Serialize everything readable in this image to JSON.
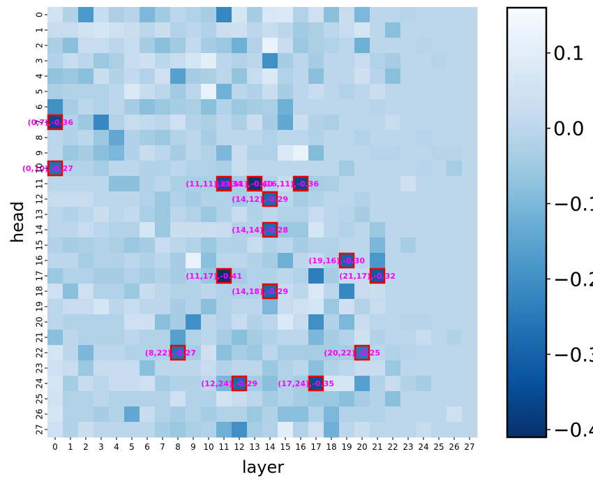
{
  "chart_data": {
    "type": "heatmap",
    "title": "",
    "xlabel": "layer",
    "ylabel": "head",
    "x_ticks": [
      "0",
      "1",
      "2",
      "3",
      "4",
      "5",
      "6",
      "7",
      "8",
      "9",
      "10",
      "11",
      "12",
      "13",
      "14",
      "15",
      "16",
      "17",
      "18",
      "19",
      "20",
      "21",
      "22",
      "23",
      "24",
      "25",
      "26",
      "27"
    ],
    "y_ticks": [
      "0",
      "1",
      "2",
      "3",
      "4",
      "5",
      "6",
      "7",
      "8",
      "9",
      "10",
      "11",
      "12",
      "13",
      "14",
      "15",
      "16",
      "17",
      "18",
      "19",
      "20",
      "21",
      "22",
      "23",
      "24",
      "25",
      "26",
      "27"
    ],
    "color_range": [
      -0.41,
      0.16
    ],
    "colormap": "Blues_r",
    "colorbar_ticks": [
      {
        "value": 0.1,
        "label": "0.1"
      },
      {
        "value": 0.0,
        "label": "0.0"
      },
      {
        "value": -0.1,
        "label": "−0.1"
      },
      {
        "value": -0.2,
        "label": "−0.2"
      },
      {
        "value": -0.3,
        "label": "−0.3"
      },
      {
        "value": -0.4,
        "label": "−0.4"
      }
    ],
    "grid": false,
    "values": [
      [
        0.05,
        -0.02,
        -0.18,
        0.02,
        -0.03,
        -0.01,
        -0.1,
        -0.05,
        0.0,
        -0.02,
        -0.04,
        -0.22,
        0.06,
        -0.04,
        0.07,
        0.08,
        -0.02,
        0.04,
        -0.08,
        0.02,
        -0.1,
        0.0,
        0.0,
        -0.01,
        0.0,
        0.0,
        0.0,
        0.0
      ],
      [
        0.02,
        0.02,
        0.05,
        0.06,
        0.04,
        0.03,
        0.0,
        0.03,
        -0.02,
        0.0,
        -0.02,
        0.03,
        0.04,
        0.0,
        0.02,
        0.0,
        -0.05,
        -0.03,
        0.0,
        0.02,
        0.06,
        0.0,
        -0.08,
        0.0,
        0.0,
        0.0,
        0.0,
        0.0
      ],
      [
        -0.03,
        -0.08,
        0.02,
        0.02,
        0.0,
        0.02,
        -0.04,
        -0.08,
        -0.05,
        0.01,
        -0.04,
        -0.06,
        -0.12,
        -0.02,
        0.12,
        0.02,
        -0.06,
        -0.03,
        -0.02,
        0.0,
        -0.12,
        0.0,
        0.0,
        0.0,
        -0.01,
        0.0,
        0.0,
        0.0
      ],
      [
        -0.02,
        0.02,
        0.0,
        -0.06,
        -0.03,
        0.02,
        0.04,
        0.0,
        0.02,
        0.06,
        0.1,
        0.0,
        -0.02,
        0.0,
        -0.2,
        -0.04,
        0.0,
        -0.04,
        0.0,
        0.0,
        0.02,
        -0.02,
        -0.04,
        0.0,
        0.0,
        -0.01,
        0.0,
        0.0
      ],
      [
        -0.07,
        -0.06,
        -0.08,
        0.03,
        -0.02,
        0.01,
        -0.02,
        0.04,
        -0.16,
        -0.04,
        -0.03,
        0.0,
        -0.07,
        0.02,
        0.08,
        -0.02,
        0.0,
        -0.08,
        0.0,
        0.0,
        0.04,
        -0.01,
        -0.08,
        0.0,
        0.0,
        0.0,
        0.0,
        0.0
      ],
      [
        -0.03,
        -0.02,
        -0.02,
        -0.02,
        0.0,
        0.08,
        0.02,
        0.0,
        -0.05,
        0.0,
        0.12,
        -0.12,
        0.0,
        -0.02,
        0.03,
        -0.04,
        0.0,
        0.02,
        0.0,
        -0.02,
        0.0,
        0.03,
        0.0,
        0.0,
        0.0,
        0.0,
        0.0,
        0.0
      ],
      [
        -0.2,
        -0.04,
        0.0,
        -0.02,
        0.0,
        -0.04,
        -0.08,
        -0.06,
        -0.04,
        -0.03,
        -0.08,
        -0.02,
        -0.06,
        -0.04,
        -0.03,
        -0.12,
        0.0,
        0.0,
        0.0,
        0.0,
        0.0,
        -0.01,
        0.0,
        0.0,
        0.0,
        0.0,
        0.0,
        0.0
      ],
      [
        -0.36,
        -0.02,
        -0.06,
        -0.22,
        -0.02,
        0.02,
        0.01,
        0.0,
        0.04,
        -0.02,
        -0.03,
        0.0,
        -0.03,
        0.03,
        -0.04,
        -0.14,
        0.03,
        -0.02,
        -0.03,
        0.0,
        0.0,
        0.0,
        0.02,
        0.0,
        0.0,
        0.0,
        0.0,
        0.0
      ],
      [
        0.0,
        -0.02,
        0.0,
        -0.06,
        -0.14,
        -0.02,
        -0.04,
        -0.06,
        -0.02,
        0.0,
        -0.04,
        0.0,
        0.0,
        0.0,
        -0.02,
        0.0,
        0.0,
        -0.02,
        0.0,
        0.0,
        -0.02,
        0.0,
        0.0,
        0.0,
        -0.01,
        0.0,
        0.0,
        0.0
      ],
      [
        0.0,
        -0.06,
        -0.04,
        -0.08,
        -0.1,
        -0.02,
        0.02,
        0.0,
        -0.04,
        0.0,
        -0.02,
        -0.1,
        0.02,
        -0.02,
        -0.02,
        0.08,
        0.12,
        -0.09,
        0.0,
        0.0,
        0.0,
        -0.01,
        -0.01,
        0.0,
        0.0,
        -0.01,
        -0.01,
        0.0
      ],
      [
        -0.27,
        -0.02,
        -0.02,
        -0.04,
        0.0,
        0.0,
        -0.02,
        -0.02,
        0.0,
        -0.02,
        -0.02,
        -0.03,
        0.02,
        0.0,
        0.0,
        0.0,
        0.0,
        0.0,
        0.0,
        -0.05,
        0.0,
        0.0,
        0.0,
        0.0,
        -0.01,
        0.0,
        -0.04,
        0.0
      ],
      [
        0.0,
        0.0,
        0.0,
        0.0,
        -0.08,
        -0.08,
        -0.02,
        0.0,
        -0.03,
        -0.03,
        -0.03,
        -0.34,
        -0.04,
        -0.4,
        -0.02,
        0.02,
        -0.36,
        -0.04,
        -0.03,
        0.0,
        0.0,
        0.0,
        0.0,
        0.04,
        0.0,
        0.0,
        0.0,
        0.0
      ],
      [
        0.02,
        0.02,
        0.02,
        0.0,
        0.0,
        0.0,
        -0.02,
        -0.06,
        -0.02,
        -0.04,
        -0.02,
        -0.02,
        -0.04,
        -0.02,
        -0.29,
        0.0,
        -0.04,
        -0.02,
        0.0,
        0.0,
        -0.02,
        0.0,
        0.0,
        0.0,
        0.0,
        0.0,
        0.0,
        0.0
      ],
      [
        0.0,
        -0.02,
        0.0,
        0.03,
        0.0,
        0.01,
        -0.03,
        -0.06,
        0.0,
        -0.02,
        -0.06,
        -0.02,
        0.02,
        -0.02,
        0.0,
        -0.02,
        -0.02,
        0.02,
        0.0,
        -0.01,
        -0.04,
        0.0,
        0.0,
        0.0,
        0.0,
        0.0,
        0.0,
        0.0
      ],
      [
        0.0,
        0.0,
        0.02,
        0.0,
        -0.02,
        -0.02,
        0.06,
        -0.06,
        0.03,
        0.03,
        0.03,
        0.02,
        -0.02,
        -0.02,
        -0.28,
        -0.06,
        -0.06,
        0.06,
        0.0,
        -0.02,
        0.0,
        -0.06,
        0.0,
        0.0,
        0.0,
        0.0,
        0.0,
        0.0
      ],
      [
        -0.02,
        -0.04,
        -0.03,
        -0.02,
        -0.03,
        -0.06,
        -0.04,
        0.02,
        0.0,
        -0.02,
        -0.06,
        -0.02,
        -0.02,
        0.02,
        -0.02,
        0.0,
        -0.04,
        -0.02,
        -0.02,
        0.0,
        0.0,
        -0.1,
        0.0,
        -0.04,
        0.0,
        0.0,
        0.0,
        0.0
      ],
      [
        0.0,
        0.0,
        -0.04,
        -0.02,
        -0.02,
        0.0,
        -0.02,
        0.0,
        -0.04,
        0.12,
        -0.08,
        0.0,
        0.0,
        -0.02,
        -0.04,
        -0.12,
        0.0,
        0.02,
        -0.02,
        -0.3,
        0.0,
        -0.18,
        0.0,
        0.0,
        0.0,
        0.0,
        0.0,
        0.0
      ],
      [
        -0.06,
        -0.02,
        -0.02,
        -0.04,
        -0.04,
        -0.02,
        -0.04,
        -0.02,
        -0.04,
        -0.02,
        -0.06,
        -0.41,
        -0.04,
        -0.02,
        -0.02,
        0.0,
        -0.02,
        -0.24,
        -0.04,
        0.02,
        0.02,
        -0.32,
        0.0,
        0.0,
        0.0,
        0.0,
        0.0,
        0.0
      ],
      [
        0.04,
        -0.08,
        0.04,
        -0.02,
        -0.02,
        -0.06,
        0.02,
        0.0,
        -0.02,
        -0.02,
        0.0,
        -0.02,
        -0.02,
        -0.02,
        -0.29,
        0.02,
        0.0,
        0.08,
        0.0,
        -0.22,
        0.02,
        0.03,
        0.0,
        0.0,
        0.0,
        0.0,
        0.0,
        0.0
      ],
      [
        0.0,
        0.02,
        0.02,
        0.06,
        0.0,
        0.02,
        0.0,
        0.0,
        -0.04,
        -0.02,
        -0.08,
        -0.02,
        0.0,
        0.0,
        -0.1,
        0.02,
        0.04,
        0.06,
        -0.06,
        0.04,
        -0.02,
        0.02,
        0.0,
        0.0,
        0.0,
        0.0,
        0.0,
        0.0
      ],
      [
        0.0,
        -0.02,
        -0.02,
        -0.02,
        -0.02,
        0.04,
        0.04,
        -0.08,
        -0.04,
        -0.2,
        0.0,
        -0.02,
        0.02,
        -0.02,
        0.0,
        0.08,
        0.02,
        -0.2,
        -0.02,
        -0.1,
        0.02,
        0.0,
        0.0,
        -0.01,
        -0.01,
        0.0,
        0.0,
        0.0
      ],
      [
        -0.08,
        0.0,
        -0.02,
        -0.02,
        -0.02,
        0.0,
        -0.02,
        -0.02,
        -0.16,
        -0.02,
        0.0,
        -0.04,
        -0.08,
        -0.04,
        -0.02,
        0.0,
        0.0,
        -0.1,
        -0.04,
        -0.02,
        0.04,
        -0.02,
        0.0,
        0.0,
        0.02,
        0.0,
        -0.02,
        0.0
      ],
      [
        0.06,
        0.0,
        -0.1,
        0.0,
        0.0,
        -0.02,
        -0.02,
        -0.02,
        -0.27,
        -0.04,
        0.04,
        -0.08,
        -0.04,
        -0.06,
        0.0,
        -0.04,
        -0.04,
        -0.04,
        -0.04,
        -0.04,
        -0.25,
        0.0,
        -0.02,
        -0.01,
        0.0,
        0.0,
        0.0,
        0.0
      ],
      [
        0.04,
        0.02,
        -0.06,
        0.02,
        0.02,
        0.02,
        -0.08,
        0.0,
        0.0,
        0.0,
        0.02,
        -0.02,
        0.0,
        0.0,
        -0.06,
        -0.02,
        0.0,
        -0.08,
        -0.02,
        0.0,
        0.02,
        0.02,
        -0.06,
        0.0,
        0.0,
        0.0,
        0.0,
        0.0
      ],
      [
        0.06,
        -0.04,
        0.02,
        0.0,
        0.02,
        0.02,
        0.04,
        -0.04,
        -0.02,
        -0.02,
        0.0,
        -0.1,
        -0.29,
        -0.04,
        -0.08,
        -0.02,
        -0.04,
        -0.35,
        0.06,
        0.06,
        -0.16,
        -0.02,
        0.02,
        -0.02,
        -0.04,
        0.0,
        0.0,
        0.0
      ],
      [
        0.05,
        -0.02,
        -0.02,
        0.0,
        -0.02,
        -0.02,
        -0.02,
        -0.02,
        0.04,
        -0.02,
        -0.02,
        0.05,
        0.02,
        0.0,
        -0.04,
        -0.02,
        -0.04,
        -0.06,
        -0.06,
        -0.08,
        -0.04,
        -0.02,
        -0.08,
        0.0,
        0.0,
        0.0,
        0.0,
        0.0
      ],
      [
        0.06,
        -0.02,
        -0.02,
        -0.04,
        -0.02,
        -0.14,
        0.02,
        -0.02,
        -0.04,
        -0.02,
        -0.04,
        -0.02,
        -0.02,
        -0.06,
        -0.02,
        -0.08,
        -0.08,
        -0.02,
        -0.1,
        -0.02,
        -0.02,
        -0.02,
        0.0,
        0.0,
        0.0,
        0.0,
        0.04,
        0.0
      ],
      [
        0.04,
        -0.02,
        0.03,
        0.0,
        0.0,
        0.0,
        0.0,
        -0.04,
        -0.06,
        -0.03,
        -0.02,
        -0.12,
        -0.2,
        -0.04,
        -0.02,
        0.1,
        -0.02,
        0.04,
        -0.12,
        0.0,
        0.03,
        0.0,
        0.0,
        0.0,
        0.02,
        0.0,
        0.0,
        0.0
      ]
    ],
    "highlights": [
      {
        "layer": 0,
        "head": 7,
        "label": "(0,7),-0.36"
      },
      {
        "layer": 0,
        "head": 10,
        "label": "(0,10),-0.27"
      },
      {
        "layer": 11,
        "head": 11,
        "label": "(11,11),-0.34"
      },
      {
        "layer": 13,
        "head": 11,
        "label": "(13,11),-0.40"
      },
      {
        "layer": 16,
        "head": 11,
        "label": "(16,11),-0.36"
      },
      {
        "layer": 14,
        "head": 12,
        "label": "(14,12),-0.29"
      },
      {
        "layer": 14,
        "head": 14,
        "label": "(14,14),-0.28"
      },
      {
        "layer": 19,
        "head": 16,
        "label": "(19,16),-0.30"
      },
      {
        "layer": 11,
        "head": 17,
        "label": "(11,17),-0.41"
      },
      {
        "layer": 21,
        "head": 17,
        "label": "(21,17),-0.32"
      },
      {
        "layer": 14,
        "head": 18,
        "label": "(14,18),-0.29"
      },
      {
        "layer": 8,
        "head": 22,
        "label": "(8,22),-0.27"
      },
      {
        "layer": 20,
        "head": 22,
        "label": "(20,22),-0.25"
      },
      {
        "layer": 12,
        "head": 24,
        "label": "(12,24),-0.29"
      },
      {
        "layer": 17,
        "head": 24,
        "label": "(17,24),-0.35"
      }
    ],
    "highlight_color": "#ee0000",
    "annotation_color": "#ff00ff"
  }
}
